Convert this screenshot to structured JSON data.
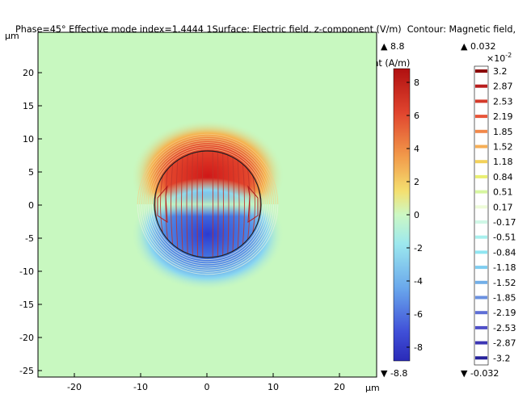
{
  "title": {
    "line1": "Phase=45° Effective mode index=1.4444 1Surface: Electric field, z-component (V/m)  Contour: Magnetic field,",
    "line2": "z-component (A/m)"
  },
  "axes": {
    "y_unit": "µm",
    "x_unit": "µm",
    "x_ticks": [
      "-20",
      "-10",
      "0",
      "10",
      "20"
    ],
    "y_ticks": [
      "20",
      "15",
      "10",
      "5",
      "0",
      "-5",
      "-10",
      "-15",
      "-20",
      "-25"
    ]
  },
  "surface_colorbar": {
    "max_label": "▲ 8.8",
    "min_label": "▼ -8.8",
    "ticks": [
      "8",
      "6",
      "4",
      "2",
      "0",
      "-2",
      "-4",
      "-6",
      "-8"
    ]
  },
  "contour_colorbar": {
    "max_label": "▲ 0.032",
    "min_label": "▼ -0.032",
    "scale_label": "×10",
    "scale_exp": "-2",
    "levels": [
      "3.2",
      "2.87",
      "2.53",
      "2.19",
      "1.85",
      "1.52",
      "1.18",
      "0.84",
      "0.51",
      "0.17",
      "-0.17",
      "-0.51",
      "-0.84",
      "-1.18",
      "-1.52",
      "-1.85",
      "-2.19",
      "-2.53",
      "-2.87",
      "-3.2"
    ],
    "level_colors": [
      "#8b0000",
      "#b81d1d",
      "#d43a2a",
      "#e8553a",
      "#f2884a",
      "#f6ae55",
      "#f3d15a",
      "#e9ef72",
      "#d7f6a0",
      "#eefcd8",
      "#cff7e6",
      "#a8f0ee",
      "#8fe6f2",
      "#7fcdf0",
      "#72afe8",
      "#6a90e0",
      "#5f6fd6",
      "#4f4fc8",
      "#3c36b4",
      "#26229a"
    ]
  },
  "chart_data": {
    "type": "heatmap",
    "title": "Phase=45° Effective mode index=1.4444 1Surface: Electric field, z-component (V/m)  Contour: Magnetic field, z-component (A/m)",
    "xlabel": "µm",
    "ylabel": "µm",
    "xlim": [
      -25,
      25
    ],
    "ylim": [
      -25,
      25
    ],
    "surface_range": [
      -8.8,
      8.8
    ],
    "contour_range": [
      -0.032,
      0.032
    ],
    "core_radius": 8,
    "contour_levels_x1e-2": [
      3.2,
      2.87,
      2.53,
      2.19,
      1.85,
      1.52,
      1.18,
      0.84,
      0.51,
      0.17,
      -0.17,
      -0.51,
      -0.84,
      -1.18,
      -1.52,
      -1.85,
      -2.19,
      -2.53,
      -2.87,
      -3.2
    ]
  }
}
